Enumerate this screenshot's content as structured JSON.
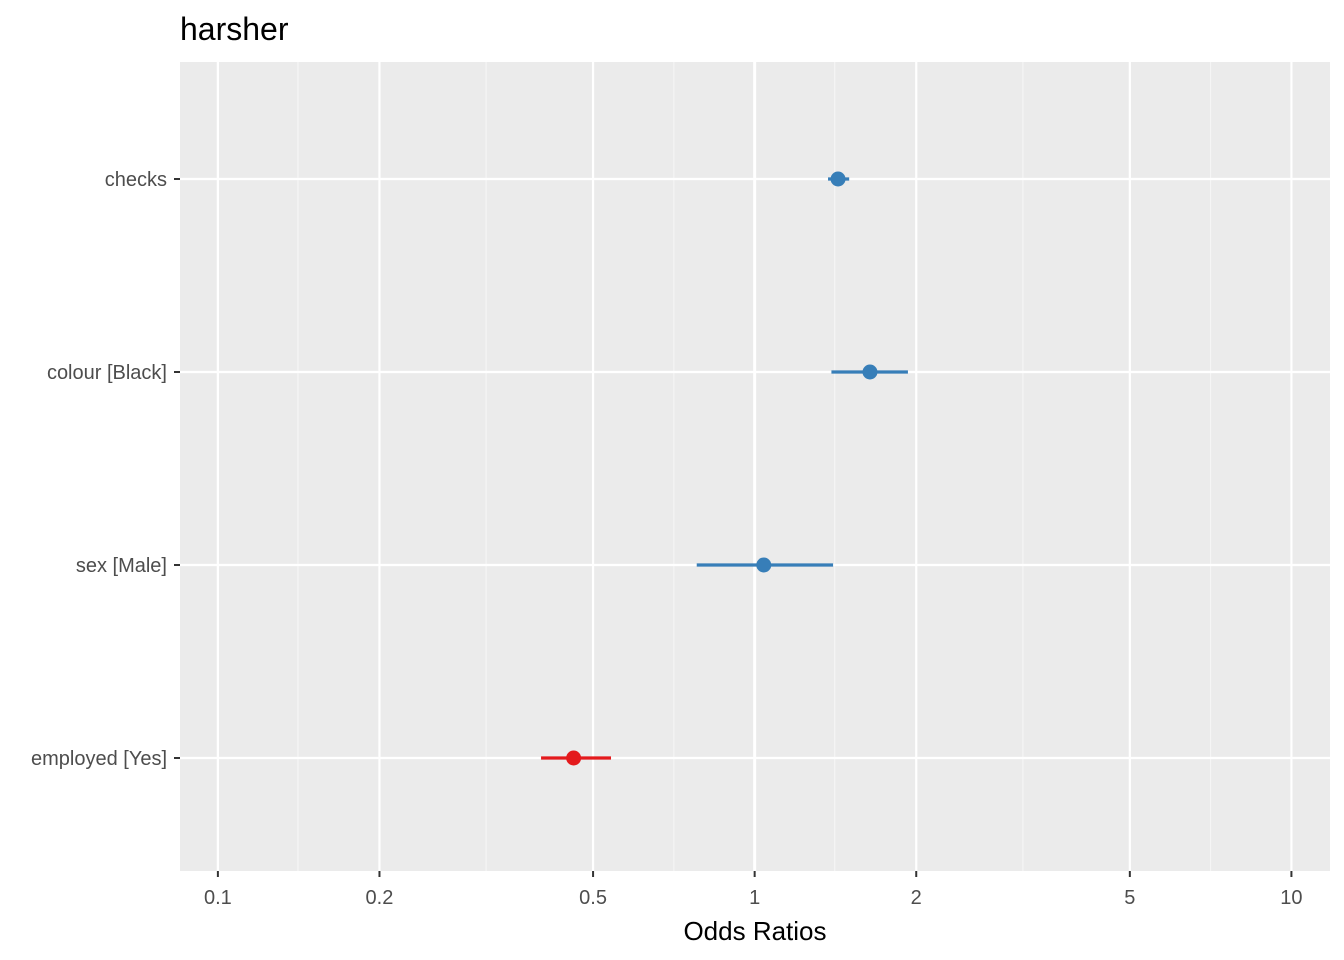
{
  "chart_data": {
    "type": "forest",
    "title": "harsher",
    "xlabel": "Odds Ratios",
    "ylabel": "",
    "x_scale": "log10",
    "xlim": [
      0.085,
      11.8
    ],
    "x_ticks": [
      0.1,
      0.2,
      0.5,
      1,
      2,
      5,
      10
    ],
    "x_tick_labels": [
      "0.1",
      "0.2",
      "0.5",
      "1",
      "2",
      "5",
      "10"
    ],
    "x_minor_ticks": [
      0.141,
      0.316,
      0.707,
      1.41,
      3.16,
      7.07
    ],
    "reference_line": 1,
    "grid": true,
    "terms": [
      {
        "label": "checks",
        "estimate": 1.43,
        "ci_low": 1.37,
        "ci_high": 1.5,
        "color": "#377eb8"
      },
      {
        "label": "colour [Black]",
        "estimate": 1.64,
        "ci_low": 1.39,
        "ci_high": 1.93,
        "color": "#377eb8"
      },
      {
        "label": "sex [Male]",
        "estimate": 1.04,
        "ci_low": 0.78,
        "ci_high": 1.4,
        "color": "#377eb8"
      },
      {
        "label": "employed [Yes]",
        "estimate": 0.46,
        "ci_low": 0.4,
        "ci_high": 0.54,
        "color": "#e41a1c"
      }
    ],
    "colors": {
      "panel_bg": "#ebebeb",
      "grid_major": "#ffffff",
      "grid_minor": "#f5f5f5",
      "positive": "#377eb8",
      "negative": "#e41a1c"
    }
  }
}
